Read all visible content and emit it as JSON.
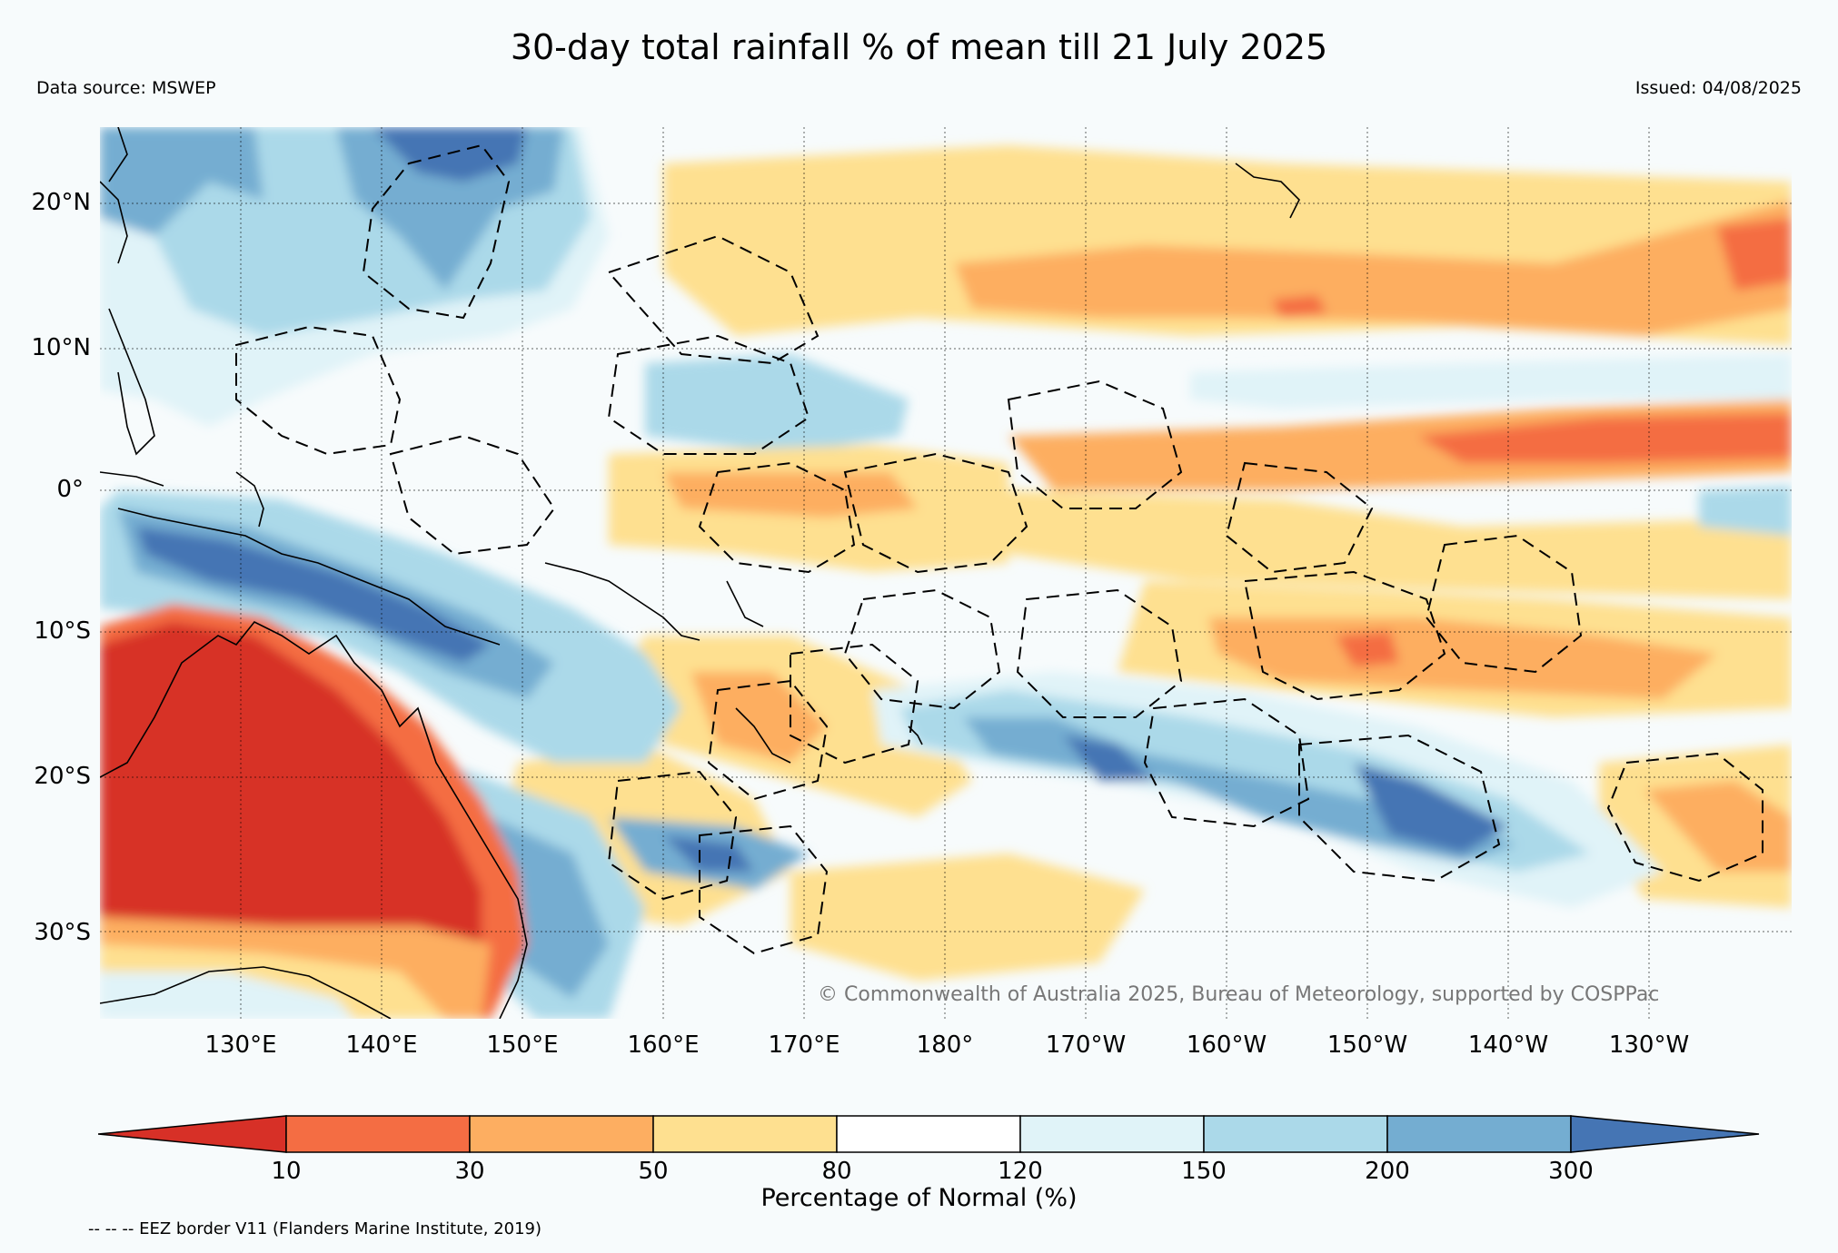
{
  "title": "30-day total rainfall % of mean till 21 July 2025",
  "data_source": "Data source: MSWEP",
  "issued": "Issued: 04/08/2025",
  "lat_labels": [
    "20°N",
    "10°N",
    "0°",
    "10°S",
    "20°S",
    "30°S"
  ],
  "lon_labels": [
    "130°E",
    "140°E",
    "150°E",
    "160°E",
    "170°E",
    "180°",
    "170°W",
    "160°W",
    "150°W",
    "140°W",
    "130°W"
  ],
  "copyright": "© Commonwealth of Australia 2025, Bureau of Meteorology, supported by COSPPac",
  "colorbar": {
    "label": "Percentage of Normal (%)",
    "ticks": [
      "10",
      "30",
      "50",
      "80",
      "120",
      "150",
      "200",
      "300"
    ],
    "colors": [
      "#d73027",
      "#f46d43",
      "#fdae61",
      "#fee090",
      "#ffffff",
      "#e0f3f8",
      "#abd9e9",
      "#74add1",
      "#4575b4"
    ]
  },
  "eez_note": "-- -- -- EEZ border V11 (Flanders Marine Institute, 2019)"
}
